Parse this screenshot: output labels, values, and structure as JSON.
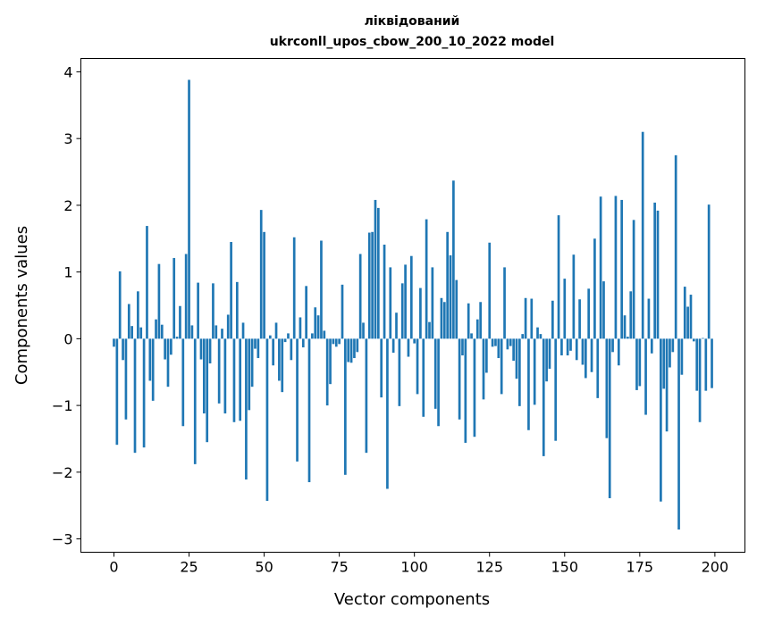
{
  "chart_data": {
    "type": "bar",
    "title_line1": "ліквідований",
    "title_line2": "ukrconll_upos_cbow_200_10_2022 model",
    "xlabel": "Vector components",
    "ylabel": "Components values",
    "xlim": [
      -11,
      210
    ],
    "ylim": [
      -3.2,
      4.2
    ],
    "xticks": [
      0,
      25,
      50,
      75,
      100,
      125,
      150,
      175,
      200
    ],
    "xtick_labels": [
      "0",
      "25",
      "50",
      "75",
      "100",
      "125",
      "150",
      "175",
      "200"
    ],
    "yticks": [
      -3,
      -2,
      -1,
      0,
      1,
      2,
      3,
      4
    ],
    "ytick_labels": [
      "−3",
      "−2",
      "−1",
      "0",
      "1",
      "2",
      "3",
      "4"
    ],
    "grid": false,
    "bar_color": "#1f77b4",
    "values": [
      -0.12,
      -1.59,
      1.01,
      -0.32,
      -1.21,
      0.52,
      0.19,
      -1.71,
      0.71,
      0.17,
      -1.63,
      1.69,
      -0.63,
      -0.93,
      0.29,
      1.12,
      0.21,
      -0.31,
      -0.72,
      -0.24,
      1.21,
      0.03,
      0.49,
      -1.31,
      1.27,
      3.88,
      0.2,
      -1.88,
      0.84,
      -0.31,
      -1.12,
      -1.55,
      -0.37,
      0.83,
      0.2,
      -0.97,
      0.15,
      -1.12,
      0.36,
      1.45,
      -1.25,
      0.85,
      -1.23,
      0.24,
      -2.11,
      -1.07,
      -0.72,
      -0.15,
      -0.29,
      1.93,
      1.6,
      -2.43,
      0.05,
      -0.4,
      0.24,
      -0.63,
      -0.8,
      -0.05,
      0.08,
      -0.32,
      1.52,
      -1.84,
      0.32,
      -0.13,
      0.79,
      -2.15,
      0.08,
      0.47,
      0.35,
      1.47,
      0.12,
      -1.0,
      -0.68,
      -0.08,
      -0.12,
      -0.08,
      0.81,
      -2.04,
      -0.35,
      -0.36,
      -0.29,
      -0.2,
      1.27,
      0.24,
      -1.71,
      1.59,
      1.6,
      2.08,
      1.96,
      -0.88,
      1.41,
      -2.25,
      1.07,
      -0.21,
      0.39,
      -1.01,
      0.83,
      1.11,
      -0.27,
      1.24,
      -0.07,
      -0.83,
      0.76,
      -1.17,
      1.79,
      0.25,
      1.07,
      -1.05,
      -1.31,
      0.61,
      0.55,
      1.6,
      1.25,
      2.37,
      0.88,
      -1.21,
      -0.25,
      -1.56,
      0.53,
      0.08,
      -1.47,
      0.29,
      0.55,
      -0.91,
      -0.51,
      1.44,
      -0.12,
      -0.11,
      -0.29,
      -0.83,
      1.07,
      -0.16,
      -0.11,
      -0.33,
      -0.6,
      -1.01,
      0.07,
      0.61,
      -1.37,
      0.6,
      -0.99,
      0.17,
      0.07,
      -1.76,
      -0.64,
      -0.45,
      0.57,
      -1.53,
      1.85,
      -0.25,
      0.9,
      -0.25,
      -0.18,
      1.26,
      -0.32,
      0.59,
      -0.39,
      -0.59,
      0.75,
      -0.5,
      1.5,
      -0.89,
      2.13,
      0.86,
      -1.49,
      -2.39,
      -0.2,
      2.14,
      -0.4,
      2.08,
      0.35,
      0.03,
      0.71,
      1.78,
      -0.77,
      -0.71,
      3.1,
      -1.14,
      0.6,
      -0.22,
      2.04,
      1.92,
      -2.44,
      -0.75,
      -1.39,
      -0.43,
      -0.2,
      2.75,
      -2.86,
      -0.54,
      0.78,
      0.48,
      0.66,
      -0.04,
      -0.78,
      -1.25,
      0.01,
      -0.78,
      2.01,
      -0.74
    ]
  }
}
